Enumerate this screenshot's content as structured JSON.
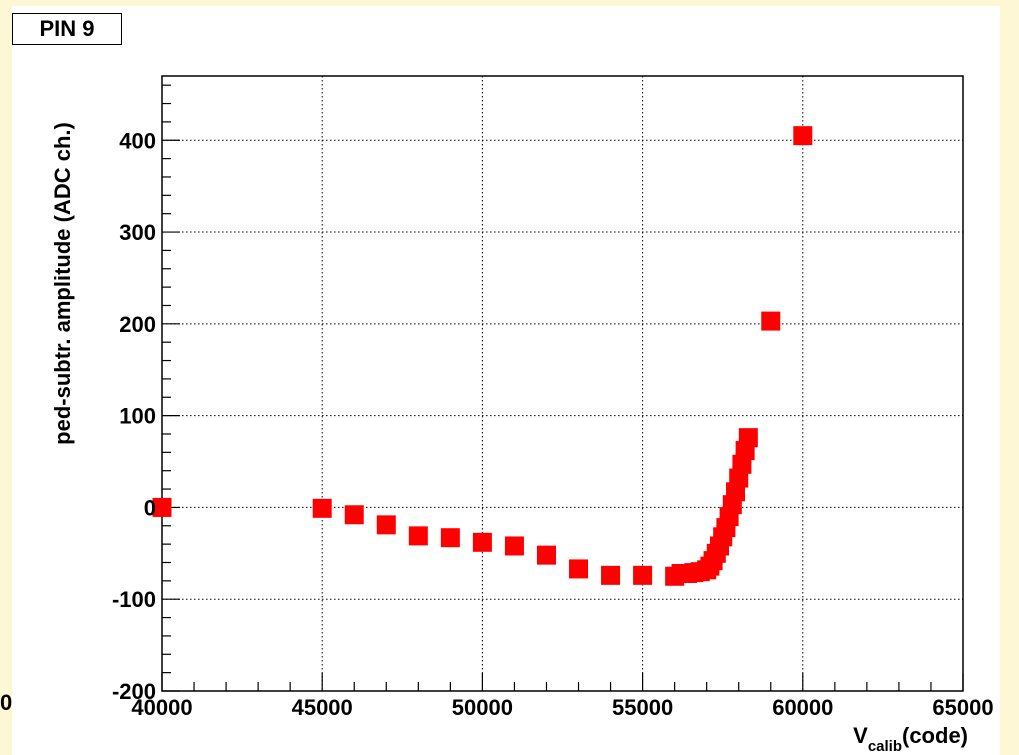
{
  "page": {
    "title_box": "PIN 9",
    "edge_fragment": "0"
  },
  "colors": {
    "background": "#fdf7d6",
    "canvas": "#ffffff",
    "marker": "#ff0000",
    "grid": "#000000"
  },
  "chart_data": {
    "type": "scatter",
    "title": "PIN 9",
    "xlabel_main": "V",
    "xlabel_sub": "calib",
    "xlabel_unit": "(code)",
    "ylabel": "ped-subtr. amplitude (ADC ch.)",
    "xlim": [
      40000,
      65000
    ],
    "ylim": [
      -200,
      470
    ],
    "grid": true,
    "legend": "none",
    "marker": "square",
    "x_ticks": [
      40000,
      45000,
      50000,
      55000,
      60000,
      65000
    ],
    "x_tick_labels": [
      "40000",
      "45000",
      "50000",
      "55000",
      "60000",
      "65000"
    ],
    "y_ticks": [
      -200,
      -100,
      0,
      100,
      200,
      300,
      400
    ],
    "y_tick_labels": [
      "-200",
      "-100",
      "0",
      "100",
      "200",
      "300",
      "400"
    ],
    "series": [
      {
        "x": [
          40000,
          45000,
          46000,
          47000,
          48000,
          49000,
          50000,
          51000,
          52000,
          53000,
          54000,
          55000,
          56000,
          56200,
          56400,
          56600,
          56800,
          57000,
          57100,
          57200,
          57300,
          57400,
          57500,
          57600,
          57700,
          57800,
          57900,
          58000,
          58100,
          58200,
          58300,
          59000,
          60000
        ],
        "y": [
          0,
          -1,
          -8,
          -19,
          -31,
          -33,
          -38,
          -42,
          -52,
          -67,
          -74,
          -74,
          -75,
          -72,
          -72,
          -71,
          -70,
          -68,
          -64,
          -58,
          -50,
          -42,
          -32,
          -22,
          -10,
          3,
          17,
          32,
          47,
          62,
          76,
          203,
          405
        ]
      }
    ]
  }
}
